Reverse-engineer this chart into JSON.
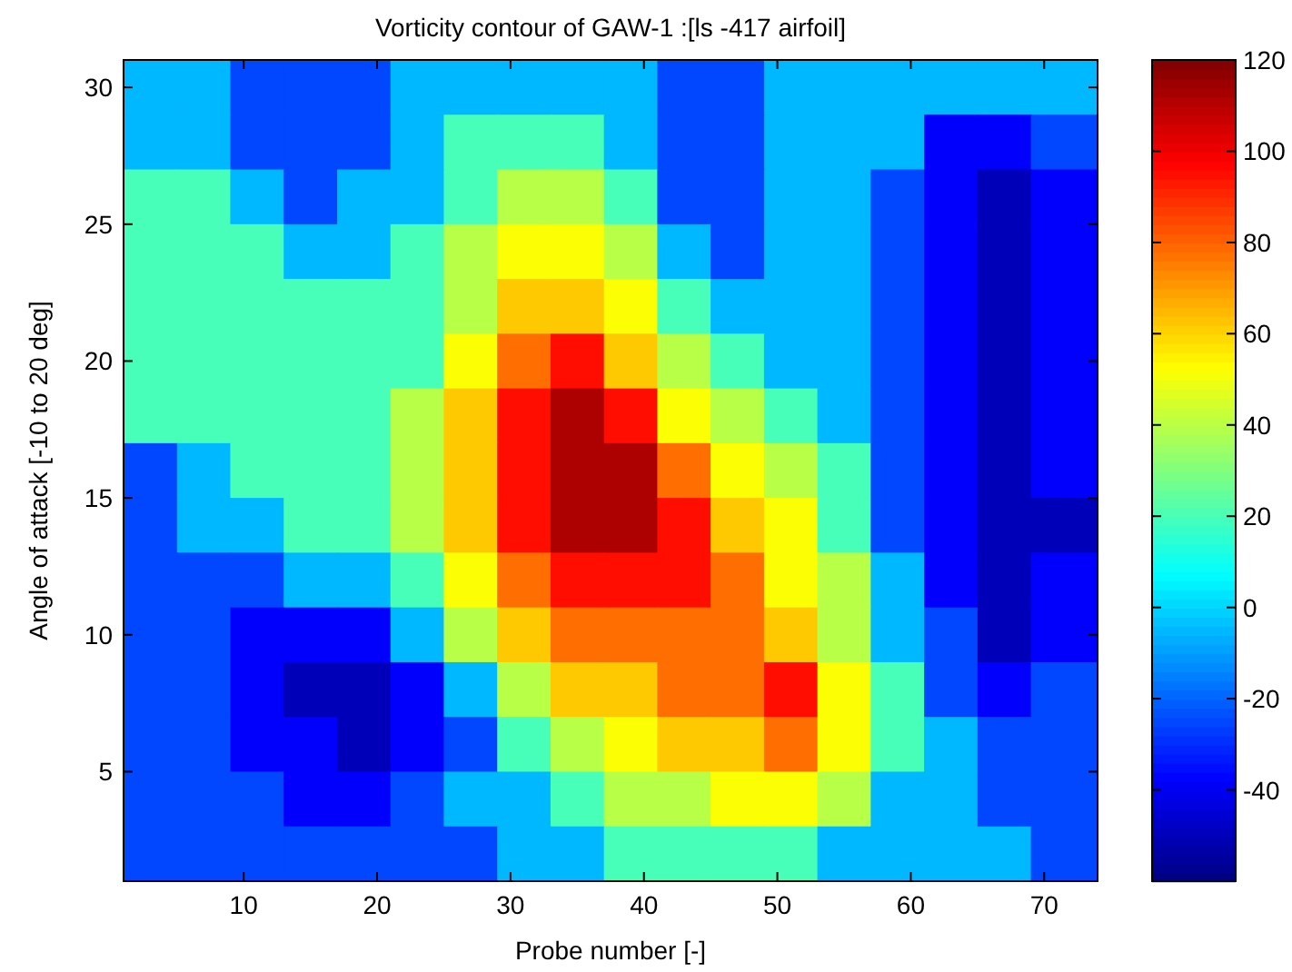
{
  "chart_data": {
    "type": "heatmap",
    "title": "Vorticity contour of GAW-1 :[ls -417 airfoil]",
    "xlabel": "Probe number [-]",
    "ylabel": "Angle of attack [-10 to 20 deg]",
    "x": [
      3,
      7,
      11,
      15,
      19,
      23,
      27,
      31,
      35,
      39,
      43,
      47,
      51,
      55,
      59,
      63,
      67,
      71
    ],
    "y": [
      30,
      28,
      26,
      24,
      22,
      20,
      18,
      16,
      14,
      12,
      10,
      8,
      6,
      4,
      2
    ],
    "cells": [
      [
        -5,
        -5,
        -25,
        -25,
        -25,
        -5,
        -5,
        -5,
        -5,
        -5,
        -25,
        -25,
        -5,
        -5,
        -5,
        -5,
        -5,
        -5
      ],
      [
        -5,
        -5,
        -25,
        -25,
        -25,
        -5,
        20,
        20,
        20,
        -5,
        -25,
        -25,
        -5,
        -5,
        -5,
        -38,
        -38,
        -25
      ],
      [
        20,
        20,
        -5,
        -25,
        -5,
        -5,
        20,
        40,
        40,
        20,
        -25,
        -25,
        -5,
        -5,
        -25,
        -38,
        -50,
        -38
      ],
      [
        20,
        20,
        20,
        -5,
        -5,
        20,
        40,
        52,
        52,
        40,
        -5,
        -25,
        -5,
        -5,
        -25,
        -38,
        -50,
        -38
      ],
      [
        20,
        20,
        20,
        20,
        20,
        20,
        40,
        62,
        62,
        52,
        20,
        -5,
        -5,
        -5,
        -25,
        -38,
        -50,
        -38
      ],
      [
        20,
        20,
        20,
        20,
        20,
        20,
        52,
        78,
        95,
        62,
        40,
        20,
        -5,
        -5,
        -25,
        -38,
        -50,
        -38
      ],
      [
        20,
        20,
        20,
        20,
        20,
        40,
        62,
        95,
        112,
        95,
        52,
        40,
        20,
        -5,
        -25,
        -38,
        -50,
        -38
      ],
      [
        -25,
        -5,
        20,
        20,
        20,
        40,
        62,
        95,
        112,
        112,
        78,
        52,
        40,
        20,
        -25,
        -38,
        -50,
        -38
      ],
      [
        -25,
        -5,
        -5,
        20,
        20,
        40,
        62,
        95,
        112,
        112,
        95,
        62,
        52,
        20,
        -25,
        -38,
        -50,
        -50
      ],
      [
        -25,
        -25,
        -25,
        -5,
        -5,
        20,
        52,
        78,
        95,
        95,
        95,
        78,
        52,
        40,
        -5,
        -38,
        -50,
        -38
      ],
      [
        -25,
        -25,
        -38,
        -38,
        -38,
        -5,
        40,
        62,
        78,
        78,
        78,
        78,
        62,
        40,
        -5,
        -25,
        -50,
        -38
      ],
      [
        -25,
        -25,
        -38,
        -50,
        -50,
        -38,
        -5,
        40,
        62,
        62,
        78,
        78,
        95,
        52,
        20,
        -25,
        -38,
        -25
      ],
      [
        -25,
        -25,
        -38,
        -38,
        -50,
        -38,
        -25,
        20,
        40,
        52,
        62,
        62,
        78,
        52,
        20,
        -5,
        -25,
        -25
      ],
      [
        -25,
        -25,
        -25,
        -38,
        -38,
        -25,
        -5,
        -5,
        20,
        40,
        40,
        52,
        52,
        40,
        -5,
        -5,
        -25,
        -25
      ],
      [
        -25,
        -25,
        -25,
        -25,
        -25,
        -25,
        -25,
        -5,
        -5,
        20,
        20,
        20,
        20,
        -5,
        -5,
        -5,
        -5,
        -25
      ]
    ],
    "xlim": [
      1,
      74
    ],
    "ylim": [
      1,
      31
    ],
    "xticks": [
      10,
      20,
      30,
      40,
      50,
      60,
      70
    ],
    "yticks": [
      5,
      10,
      15,
      20,
      25,
      30
    ],
    "clim": [
      -60,
      120
    ],
    "cticks": [
      -40,
      -20,
      0,
      20,
      40,
      60,
      80,
      100,
      120
    ]
  }
}
